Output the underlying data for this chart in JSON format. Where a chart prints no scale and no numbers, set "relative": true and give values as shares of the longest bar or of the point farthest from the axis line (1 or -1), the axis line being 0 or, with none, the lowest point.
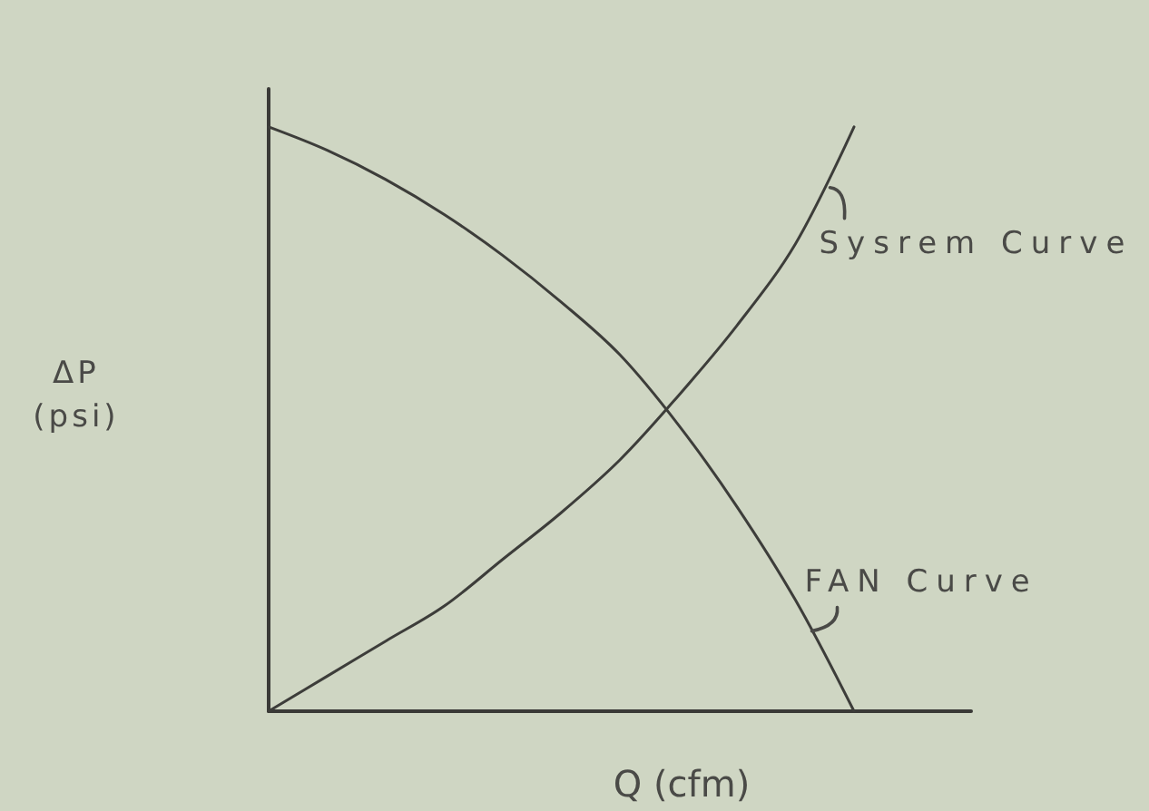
{
  "chart_data": {
    "type": "line",
    "xlabel": "Q (cfm)",
    "ylabel": "ΔP (psi)",
    "relative": true,
    "marker": "none",
    "categories": [
      null,
      null,
      null,
      null,
      null,
      null,
      null,
      null,
      null,
      null,
      null,
      null,
      null
    ],
    "series": [
      {
        "name": "Sysrem Curve",
        "color": "#3d3d3a",
        "values": [
          0,
          0.06,
          0.12,
          0.18,
          0.26,
          0.34,
          0.43,
          0.54,
          0.66,
          0.8,
          1,
          null,
          null
        ]
      },
      {
        "name": "FAN Curve",
        "color": "#3d3d3a",
        "values": [
          1,
          0.96,
          0.91,
          0.85,
          0.78,
          0.7,
          0.61,
          0.49,
          0.35,
          0.19,
          0,
          null,
          null
        ]
      }
    ]
  }
}
